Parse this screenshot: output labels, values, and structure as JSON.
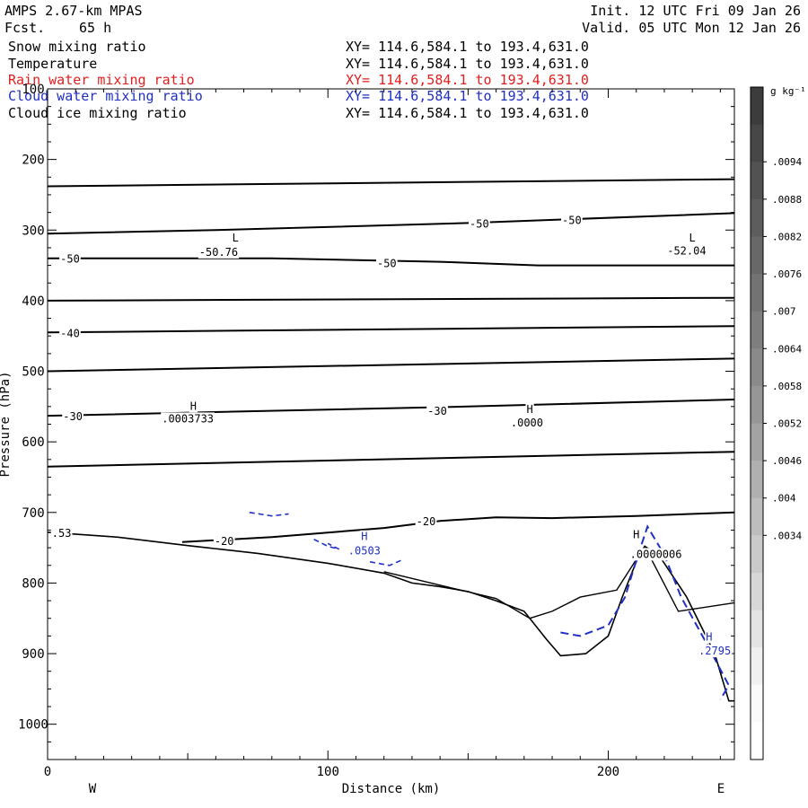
{
  "header": {
    "model": "AMPS 2.67-km MPAS",
    "forecast_label": "Fcst.",
    "forecast_hours": "65 h",
    "init": "Init. 12 UTC Fri 09 Jan 26",
    "valid": "Valid. 05 UTC Mon 12 Jan 26"
  },
  "fields": [
    {
      "name": "Snow mixing ratio",
      "xy": "XY= 114.6,584.1 to 193.4,631.0",
      "color": "#000000"
    },
    {
      "name": "Temperature",
      "xy": "XY= 114.6,584.1 to 193.4,631.0",
      "color": "#000000"
    },
    {
      "name": "Rain water mixing ratio",
      "xy": "XY= 114.6,584.1 to 193.4,631.0",
      "color": "#e02020"
    },
    {
      "name": "Cloud water mixing ratio",
      "xy": "XY= 114.6,584.1 to 193.4,631.0",
      "color": "#2030c0"
    },
    {
      "name": "Cloud ice mixing ratio",
      "xy": "XY= 114.6,584.1 to 193.4,631.0",
      "color": "#000000"
    }
  ],
  "colorbar": {
    "unit": "g kg⁻¹",
    "labels": [
      ".0094",
      ".0088",
      ".0082",
      ".0076",
      ".007",
      ".0064",
      ".0058",
      ".0052",
      ".0046",
      ".004",
      ".0034"
    ],
    "shades": [
      "#3c3c3c",
      "#474747",
      "#525252",
      "#5d5d5d",
      "#686868",
      "#737373",
      "#7e7e7e",
      "#8a8a8a",
      "#969696",
      "#a3a3a3",
      "#b0b0b0",
      "#bdbdbd",
      "#cacaca",
      "#d7d7d7",
      "#e4e4e4",
      "#f0f0f0",
      "#fafafa",
      "#ffffff"
    ]
  },
  "chart_data": {
    "type": "line",
    "xlabel": "Distance (km)",
    "ylabel": "Pressure (hPa)",
    "xlim": [
      0,
      245
    ],
    "ylim": [
      1050,
      100
    ],
    "y_scale": "linear",
    "x_ticks": [
      0,
      100,
      200
    ],
    "y_ticks": [
      100,
      200,
      300,
      400,
      500,
      600,
      700,
      800,
      900,
      1000
    ],
    "left_end_label": "W",
    "right_end_label": "E",
    "temperature_isotherms_C": [
      {
        "points": [
          [
            0,
            238
          ],
          [
            245,
            228
          ]
        ]
      },
      {
        "points": [
          [
            0,
            305
          ],
          [
            60,
            300
          ],
          [
            150,
            290
          ],
          [
            245,
            276
          ]
        ]
      },
      {
        "label": "-50",
        "points": [
          [
            0,
            340
          ],
          [
            80,
            340
          ],
          [
            140,
            345
          ],
          [
            175,
            350
          ],
          [
            245,
            350
          ]
        ]
      },
      {
        "points": [
          [
            0,
            400
          ],
          [
            245,
            396
          ]
        ]
      },
      {
        "label": "-40",
        "points": [
          [
            0,
            445
          ],
          [
            245,
            436
          ]
        ]
      },
      {
        "points": [
          [
            0,
            500
          ],
          [
            245,
            482
          ]
        ]
      },
      {
        "label": "-30",
        "points": [
          [
            0,
            563
          ],
          [
            150,
            550
          ],
          [
            245,
            540
          ]
        ]
      },
      {
        "points": [
          [
            0,
            635
          ],
          [
            245,
            614
          ]
        ]
      },
      {
        "label": "-20",
        "points": [
          [
            48,
            742
          ],
          [
            80,
            735
          ],
          [
            120,
            722
          ],
          [
            140,
            712
          ],
          [
            160,
            707
          ],
          [
            180,
            708
          ],
          [
            210,
            705
          ],
          [
            245,
            700
          ]
        ]
      }
    ],
    "terrain_hPa": [
      [
        0,
        728
      ],
      [
        25,
        735
      ],
      [
        50,
        747
      ],
      [
        75,
        758
      ],
      [
        100,
        772
      ],
      [
        120,
        786
      ],
      [
        130,
        800
      ],
      [
        140,
        805
      ],
      [
        150,
        812
      ],
      [
        160,
        825
      ],
      [
        170,
        840
      ],
      [
        178,
        880
      ],
      [
        183,
        903
      ],
      [
        192,
        900
      ],
      [
        200,
        875
      ],
      [
        205,
        820
      ],
      [
        210,
        770
      ],
      [
        213,
        748
      ],
      [
        218,
        760
      ],
      [
        228,
        820
      ],
      [
        238,
        900
      ],
      [
        243,
        967
      ],
      [
        247,
        967
      ]
    ],
    "inversion_line_hPa": [
      [
        120,
        784
      ],
      [
        140,
        803
      ],
      [
        160,
        822
      ],
      [
        172,
        850
      ],
      [
        180,
        840
      ],
      [
        190,
        820
      ],
      [
        203,
        810
      ],
      [
        213,
        748
      ],
      [
        225,
        840
      ],
      [
        245,
        828
      ]
    ],
    "cloud_water_dashes_hPa": [
      [
        183,
        870
      ],
      [
        190,
        875
      ],
      [
        200,
        860
      ],
      [
        206,
        820
      ],
      [
        210,
        768
      ],
      [
        214,
        720
      ],
      [
        220,
        760
      ],
      [
        226,
        820
      ],
      [
        235,
        885
      ],
      [
        243,
        945
      ],
      [
        240,
        965
      ]
    ],
    "annotations": [
      {
        "text": "L",
        "x": 67,
        "p": 310
      },
      {
        "text": "-50.76",
        "x": 61,
        "p": 330
      },
      {
        "text": "L",
        "x": 230,
        "p": 310
      },
      {
        "text": "-52.04",
        "x": 228,
        "p": 328
      },
      {
        "text": "H",
        "x": 52,
        "p": 548
      },
      {
        "text": ".0003733",
        "x": 50,
        "p": 566
      },
      {
        "text": "H",
        "x": 172,
        "p": 553
      },
      {
        "text": ".0000",
        "x": 171,
        "p": 572
      },
      {
        "text": "H",
        "x": 113,
        "p": 733,
        "color": "#2030c0"
      },
      {
        "text": ".0503",
        "x": 113,
        "p": 753,
        "color": "#2030c0"
      },
      {
        "text": "H",
        "x": 210,
        "p": 730
      },
      {
        "text": ".0000006",
        "x": 217,
        "p": 758
      },
      {
        "text": "H",
        "x": 236,
        "p": 875,
        "color": "#2030c0"
      },
      {
        "text": ".2795",
        "x": 238,
        "p": 895,
        "color": "#2030c0"
      },
      {
        "text": "-50",
        "x": 154,
        "p": 290
      },
      {
        "text": "-50",
        "x": 187,
        "p": 285
      },
      {
        "text": "-50",
        "x": 121,
        "p": 346
      },
      {
        "text": "-50",
        "x": 8,
        "p": 340
      },
      {
        "text": "-40",
        "x": 8,
        "p": 445
      },
      {
        "text": "-30",
        "x": 139,
        "p": 555
      },
      {
        "text": "-30",
        "x": 9,
        "p": 563
      },
      {
        "text": "-20",
        "x": 135,
        "p": 712
      },
      {
        "text": "-20",
        "x": 63,
        "p": 740
      },
      {
        "text": ".53",
        "x": 5,
        "p": 728
      }
    ]
  }
}
